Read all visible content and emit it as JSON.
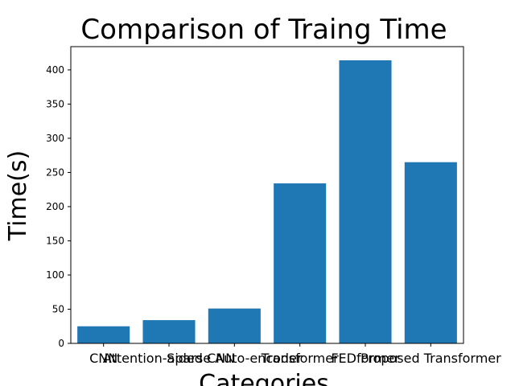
{
  "chart_data": {
    "type": "bar",
    "title": "Comparison of Traing Time",
    "xlabel": "Categories",
    "ylabel": "Time(s)",
    "categories": [
      "CNN",
      "Attention-aided CNN",
      "Sparse Auto-encoder",
      "Transformer",
      "FEDformer",
      "Proposed Transformer"
    ],
    "values": [
      25,
      34,
      51,
      234,
      414,
      265
    ],
    "color": "#1f77b4",
    "ylim": [
      0,
      434
    ],
    "yticks": [
      0,
      50,
      100,
      150,
      200,
      250,
      300,
      350,
      400
    ]
  }
}
